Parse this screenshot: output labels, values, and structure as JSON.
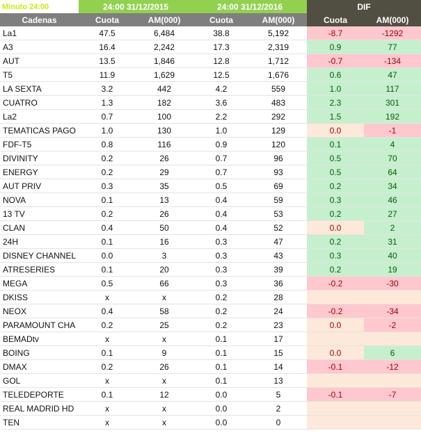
{
  "title": "Minuto 24:00",
  "groups": {
    "period_2015": "24:00 31/12/2015",
    "period_2016": "24:00 31/12/2016",
    "dif": "DIF"
  },
  "columns": [
    "Cadenas",
    "Cuota",
    "AM(000)",
    "Cuota",
    "AM(000)",
    "Cuota",
    "AM(000)"
  ],
  "colors": {
    "header_green": "#92d050",
    "header_dark": "#514f42",
    "header_gray": "#7f7f7f",
    "positive_fill": "#c6efce",
    "positive_text": "#006100",
    "negative_fill": "#ffc7ce",
    "negative_text": "#9c0006",
    "neutral_fill": "#fde9d9"
  },
  "rows": [
    {
      "name": "La1",
      "c15": "47.5",
      "am15": "6,484",
      "c16": "38.8",
      "am16": "5,192",
      "dc": "-8.7",
      "dam": "-1292",
      "dc_s": "neg",
      "dam_s": "neg"
    },
    {
      "name": "A3",
      "c15": "16.4",
      "am15": "2,242",
      "c16": "17.3",
      "am16": "2,319",
      "dc": "0.9",
      "dam": "77",
      "dc_s": "pos",
      "dam_s": "pos"
    },
    {
      "name": "AUT",
      "c15": "13.5",
      "am15": "1,846",
      "c16": "12.8",
      "am16": "1,712",
      "dc": "-0.7",
      "dam": "-134",
      "dc_s": "neg",
      "dam_s": "neg"
    },
    {
      "name": "T5",
      "c15": "11.9",
      "am15": "1,629",
      "c16": "12.5",
      "am16": "1,676",
      "dc": "0.6",
      "dam": "47",
      "dc_s": "pos",
      "dam_s": "pos"
    },
    {
      "name": "LA SEXTA",
      "c15": "3.2",
      "am15": "442",
      "c16": "4.2",
      "am16": "559",
      "dc": "1.0",
      "dam": "117",
      "dc_s": "pos",
      "dam_s": "pos"
    },
    {
      "name": "CUATRO",
      "c15": "1.3",
      "am15": "182",
      "c16": "3.6",
      "am16": "483",
      "dc": "2.3",
      "dam": "301",
      "dc_s": "pos",
      "dam_s": "pos"
    },
    {
      "name": "La2",
      "c15": "0.7",
      "am15": "100",
      "c16": "2.2",
      "am16": "292",
      "dc": "1.5",
      "dam": "192",
      "dc_s": "pos",
      "dam_s": "pos"
    },
    {
      "name": "TEMATICAS PAGO",
      "c15": "1.0",
      "am15": "130",
      "c16": "1.0",
      "am16": "129",
      "dc": "0.0",
      "dam": "-1",
      "dc_s": "zero",
      "dam_s": "neg"
    },
    {
      "name": "FDF-T5",
      "c15": "0.8",
      "am15": "116",
      "c16": "0.9",
      "am16": "120",
      "dc": "0.1",
      "dam": "4",
      "dc_s": "pos",
      "dam_s": "pos"
    },
    {
      "name": "DIVINITY",
      "c15": "0.2",
      "am15": "26",
      "c16": "0.7",
      "am16": "96",
      "dc": "0.5",
      "dam": "70",
      "dc_s": "pos",
      "dam_s": "pos"
    },
    {
      "name": "ENERGY",
      "c15": "0.2",
      "am15": "29",
      "c16": "0.7",
      "am16": "93",
      "dc": "0.5",
      "dam": "64",
      "dc_s": "pos",
      "dam_s": "pos"
    },
    {
      "name": "AUT PRIV",
      "c15": "0.3",
      "am15": "35",
      "c16": "0.5",
      "am16": "69",
      "dc": "0.2",
      "dam": "34",
      "dc_s": "pos",
      "dam_s": "pos"
    },
    {
      "name": "NOVA",
      "c15": "0.1",
      "am15": "13",
      "c16": "0.4",
      "am16": "59",
      "dc": "0.3",
      "dam": "46",
      "dc_s": "pos",
      "dam_s": "pos"
    },
    {
      "name": "13 TV",
      "c15": "0.2",
      "am15": "26",
      "c16": "0.4",
      "am16": "53",
      "dc": "0.2",
      "dam": "27",
      "dc_s": "pos",
      "dam_s": "pos"
    },
    {
      "name": "CLAN",
      "c15": "0.4",
      "am15": "50",
      "c16": "0.4",
      "am16": "52",
      "dc": "0.0",
      "dam": "2",
      "dc_s": "zero",
      "dam_s": "pos"
    },
    {
      "name": "24H",
      "c15": "0.1",
      "am15": "16",
      "c16": "0.3",
      "am16": "47",
      "dc": "0.2",
      "dam": "31",
      "dc_s": "pos",
      "dam_s": "pos"
    },
    {
      "name": "DISNEY CHANNEL",
      "c15": "0.0",
      "am15": "3",
      "c16": "0.3",
      "am16": "43",
      "dc": "0.3",
      "dam": "40",
      "dc_s": "pos",
      "dam_s": "pos"
    },
    {
      "name": "ATRESERIES",
      "c15": "0.1",
      "am15": "20",
      "c16": "0.3",
      "am16": "39",
      "dc": "0.2",
      "dam": "19",
      "dc_s": "pos",
      "dam_s": "pos"
    },
    {
      "name": "MEGA",
      "c15": "0.5",
      "am15": "66",
      "c16": "0.3",
      "am16": "36",
      "dc": "-0.2",
      "dam": "-30",
      "dc_s": "neg",
      "dam_s": "neg"
    },
    {
      "name": "DKISS",
      "c15": "x",
      "am15": "x",
      "c16": "0.2",
      "am16": "28",
      "dc": "",
      "dam": "",
      "dc_s": "none",
      "dam_s": "none"
    },
    {
      "name": "NEOX",
      "c15": "0.4",
      "am15": "58",
      "c16": "0.2",
      "am16": "24",
      "dc": "-0.2",
      "dam": "-34",
      "dc_s": "neg",
      "dam_s": "neg"
    },
    {
      "name": "PARAMOUNT CHA",
      "c15": "0.2",
      "am15": "25",
      "c16": "0.2",
      "am16": "23",
      "dc": "0.0",
      "dam": "-2",
      "dc_s": "zero",
      "dam_s": "neg"
    },
    {
      "name": "BEMADtv",
      "c15": "x",
      "am15": "x",
      "c16": "0.1",
      "am16": "17",
      "dc": "",
      "dam": "",
      "dc_s": "none",
      "dam_s": "none"
    },
    {
      "name": "BOING",
      "c15": "0.1",
      "am15": "9",
      "c16": "0.1",
      "am16": "15",
      "dc": "0.0",
      "dam": "6",
      "dc_s": "zero",
      "dam_s": "pos"
    },
    {
      "name": "DMAX",
      "c15": "0.2",
      "am15": "26",
      "c16": "0.1",
      "am16": "14",
      "dc": "-0.1",
      "dam": "-12",
      "dc_s": "neg",
      "dam_s": "neg"
    },
    {
      "name": "GOL",
      "c15": "x",
      "am15": "x",
      "c16": "0.1",
      "am16": "13",
      "dc": "",
      "dam": "",
      "dc_s": "none",
      "dam_s": "none"
    },
    {
      "name": "TELEDEPORTE",
      "c15": "0.1",
      "am15": "12",
      "c16": "0.0",
      "am16": "5",
      "dc": "-0.1",
      "dam": "-7",
      "dc_s": "neg",
      "dam_s": "neg"
    },
    {
      "name": "REAL MADRID HD",
      "c15": "x",
      "am15": "x",
      "c16": "0.0",
      "am16": "2",
      "dc": "",
      "dam": "",
      "dc_s": "none",
      "dam_s": "none"
    },
    {
      "name": "TEN",
      "c15": "x",
      "am15": "x",
      "c16": "0.0",
      "am16": "0",
      "dc": "",
      "dam": "",
      "dc_s": "none",
      "dam_s": "none"
    }
  ]
}
